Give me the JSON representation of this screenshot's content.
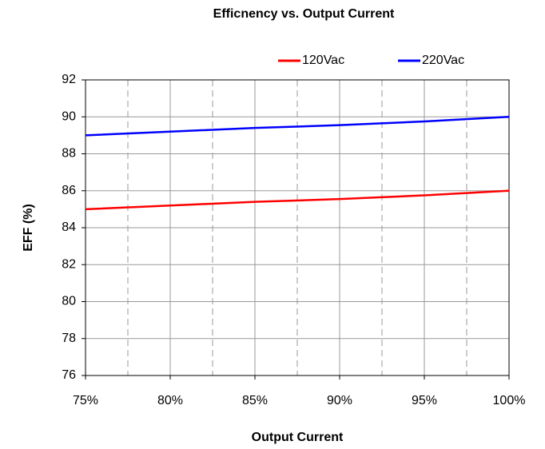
{
  "chart_data": {
    "type": "line",
    "title": "Efficnency vs. Output Current",
    "xlabel": "Output Current",
    "ylabel": "EFF (%)",
    "x": [
      75,
      80,
      85,
      90,
      95,
      100
    ],
    "series": [
      {
        "name": "120Vac",
        "color": "#ff0000",
        "values": [
          85.0,
          85.2,
          85.4,
          85.55,
          85.75,
          86.0
        ]
      },
      {
        "name": "220Vac",
        "color": "#0000ff",
        "values": [
          89.0,
          89.2,
          89.4,
          89.55,
          89.75,
          90.0
        ]
      }
    ],
    "xlim": [
      75,
      100
    ],
    "xticks": [
      {
        "value": 75,
        "label": "75%"
      },
      {
        "value": 80,
        "label": "80%"
      },
      {
        "value": 85,
        "label": "85%"
      },
      {
        "value": 90,
        "label": "90%"
      },
      {
        "value": 95,
        "label": "95%"
      },
      {
        "value": 100,
        "label": "100%"
      }
    ],
    "minor_xticks": [
      77.5,
      82.5,
      87.5,
      92.5,
      97.5
    ],
    "ylim": [
      76,
      92
    ],
    "yticks": [
      76,
      78,
      80,
      82,
      84,
      86,
      88,
      90,
      92
    ],
    "grid": true,
    "legend": "top"
  }
}
